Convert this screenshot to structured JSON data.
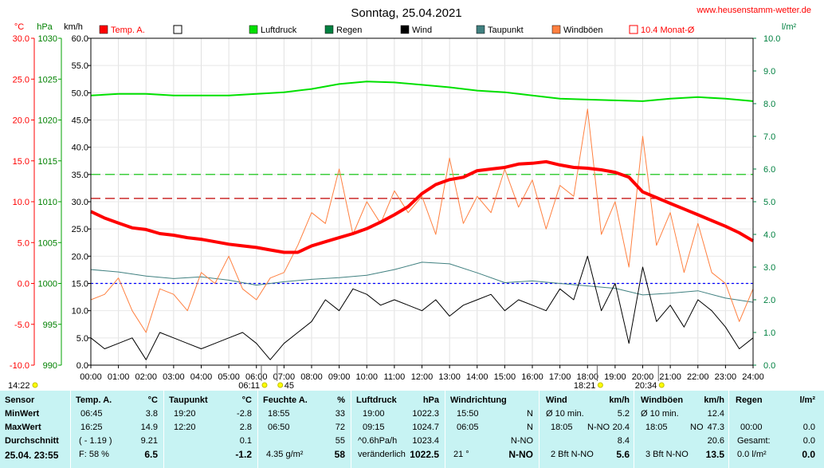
{
  "website": "www.heusenstamm-wetter.de",
  "chart_data": {
    "type": "line",
    "title": "Sonntag, 25.04.2021",
    "axes": {
      "temp": {
        "unit": "°C",
        "range": [
          -10,
          30
        ],
        "ticks": [
          "30.0",
          "25.0",
          "20.0",
          "15.0",
          "10.0",
          "5.0",
          "0.0",
          "-5.0",
          "-10.0"
        ]
      },
      "pressure": {
        "unit": "hPa",
        "range": [
          990,
          1030
        ],
        "ticks": [
          "1030",
          "1025",
          "1020",
          "1015",
          "1010",
          "1005",
          "1000",
          "995",
          "990"
        ]
      },
      "wind": {
        "unit": "km/h",
        "range": [
          0,
          60
        ],
        "ticks": [
          "60.0",
          "55.0",
          "50.0",
          "45.0",
          "40.0",
          "35.0",
          "30.0",
          "25.0",
          "20.0",
          "15.0",
          "10.0",
          "5.0",
          "0.0"
        ]
      },
      "rain": {
        "unit": "l/m²",
        "range": [
          0,
          10
        ],
        "ticks": [
          "10.0",
          "9.0",
          "8.0",
          "7.0",
          "6.0",
          "5.0",
          "4.0",
          "3.0",
          "2.0",
          "1.0",
          "0.0"
        ]
      }
    },
    "x_ticks": [
      "00:00",
      "01:00",
      "02:00",
      "03:00",
      "04:00",
      "05:00",
      "06:00",
      "07:00",
      "08:00",
      "09:00",
      "10:00",
      "11:00",
      "12:00",
      "13:00",
      "14:00",
      "15:00",
      "16:00",
      "17:00",
      "18:00",
      "19:00",
      "20:00",
      "21:00",
      "22:00",
      "23:00",
      "24:00"
    ],
    "legend": [
      {
        "name": "Temp. A.",
        "color": "#ff0000",
        "style": "filled"
      },
      {
        "name": "",
        "color": "#ffffff",
        "style": "outline"
      },
      {
        "name": "Luftdruck",
        "color": "#00e000",
        "style": "filled"
      },
      {
        "name": "Regen",
        "color": "#008040",
        "style": "filled"
      },
      {
        "name": "Wind",
        "color": "#000000",
        "style": "filled"
      },
      {
        "name": "Taupunkt",
        "color": "#408080",
        "style": "filled"
      },
      {
        "name": "Windböen",
        "color": "#ff8040",
        "style": "filled"
      },
      {
        "name": "10.4 Monat-Ø",
        "color": "#ff0000",
        "style": "outline"
      }
    ],
    "reference_lines": [
      {
        "axis": "temp",
        "value": 10.4,
        "color": "#c00000",
        "dash": "long"
      },
      {
        "axis": "temp",
        "value": 0.0,
        "color": "#0000ff",
        "dash": "short"
      },
      {
        "axis": "wind",
        "value": 35.0,
        "color": "#00c000",
        "dash": "long"
      }
    ],
    "series": [
      {
        "name": "Temp. A.",
        "axis": "temp",
        "color": "#ff0000",
        "width": 4,
        "x": [
          0,
          0.5,
          1,
          1.5,
          2,
          2.5,
          3,
          3.5,
          4,
          4.5,
          5,
          5.5,
          6,
          6.5,
          7,
          7.5,
          8,
          8.5,
          9,
          9.5,
          10,
          10.5,
          11,
          11.5,
          12,
          12.5,
          13,
          13.5,
          14,
          14.5,
          15,
          15.5,
          16,
          16.5,
          17,
          17.5,
          18,
          18.5,
          19,
          19.5,
          20,
          20.5,
          21,
          21.5,
          22,
          22.5,
          23,
          23.5,
          24
        ],
        "y": [
          8.8,
          8.0,
          7.4,
          6.8,
          6.6,
          6.1,
          5.9,
          5.6,
          5.4,
          5.1,
          4.8,
          4.6,
          4.4,
          4.1,
          3.8,
          3.8,
          4.6,
          5.1,
          5.6,
          6.1,
          6.7,
          7.5,
          8.4,
          9.4,
          11.0,
          12.1,
          12.7,
          13.0,
          13.8,
          14.0,
          14.2,
          14.6,
          14.7,
          14.9,
          14.5,
          14.2,
          14.1,
          13.9,
          13.6,
          13.0,
          11.2,
          10.5,
          9.8,
          9.1,
          8.4,
          7.7,
          7.0,
          6.2,
          5.2
        ]
      },
      {
        "name": "Luftdruck",
        "axis": "pressure",
        "color": "#00e000",
        "width": 2,
        "x": [
          0,
          1,
          2,
          3,
          4,
          5,
          6,
          7,
          8,
          9,
          10,
          11,
          12,
          13,
          14,
          15,
          16,
          17,
          18,
          19,
          20,
          21,
          22,
          23,
          24
        ],
        "y": [
          1023.0,
          1023.2,
          1023.2,
          1023.0,
          1023.0,
          1023.0,
          1023.2,
          1023.4,
          1023.8,
          1024.4,
          1024.7,
          1024.6,
          1024.3,
          1024.0,
          1023.6,
          1023.4,
          1023.0,
          1022.6,
          1022.5,
          1022.4,
          1022.3,
          1022.6,
          1022.8,
          1022.6,
          1022.3
        ]
      },
      {
        "name": "Taupunkt",
        "axis": "temp",
        "color": "#408080",
        "width": 1,
        "x": [
          0,
          1,
          2,
          3,
          4,
          5,
          6,
          7,
          8,
          9,
          10,
          11,
          12,
          13,
          14,
          15,
          16,
          17,
          18,
          19,
          20,
          21,
          22,
          23,
          24
        ],
        "y": [
          1.7,
          1.4,
          0.9,
          0.6,
          0.8,
          0.4,
          -0.2,
          0.2,
          0.5,
          0.7,
          1.0,
          1.7,
          2.6,
          2.4,
          1.3,
          0.1,
          0.3,
          0.0,
          -0.3,
          -0.6,
          -1.4,
          -1.2,
          -0.9,
          -1.8,
          -2.3
        ]
      },
      {
        "name": "Windböen",
        "axis": "wind",
        "color": "#ff8040",
        "width": 1,
        "x": [
          0,
          0.5,
          1,
          1.5,
          2,
          2.5,
          3,
          3.5,
          4,
          4.5,
          5,
          5.5,
          6,
          6.5,
          7,
          7.5,
          8,
          8.5,
          9,
          9.5,
          10,
          10.5,
          11,
          11.5,
          12,
          12.5,
          13,
          13.5,
          14,
          14.5,
          15,
          15.5,
          16,
          16.5,
          17,
          17.5,
          18,
          18.5,
          19,
          19.5,
          20,
          20.5,
          21,
          21.5,
          22,
          22.5,
          23,
          23.5,
          24
        ],
        "y": [
          12,
          13,
          16,
          10,
          6,
          14,
          13,
          10,
          17,
          15,
          20,
          14,
          12,
          16,
          17,
          22,
          28,
          26,
          36,
          24,
          30,
          26,
          32,
          28,
          31,
          24,
          38,
          26,
          31,
          28,
          36,
          29,
          34,
          25,
          33,
          31,
          47,
          24,
          30,
          18,
          42,
          22,
          28,
          17,
          26,
          17,
          15,
          8,
          14
        ]
      },
      {
        "name": "Wind",
        "axis": "wind",
        "color": "#000000",
        "width": 1,
        "x": [
          0,
          0.5,
          1,
          1.5,
          2,
          2.5,
          3,
          3.5,
          4,
          4.5,
          5,
          5.5,
          6,
          6.5,
          7,
          7.5,
          8,
          8.5,
          9,
          9.5,
          10,
          10.5,
          11,
          11.5,
          12,
          12.5,
          13,
          13.5,
          14,
          14.5,
          15,
          15.5,
          16,
          16.5,
          17,
          17.5,
          18,
          18.5,
          19,
          19.5,
          20,
          20.5,
          21,
          21.5,
          22,
          22.5,
          23,
          23.5,
          24
        ],
        "y": [
          5,
          3,
          4,
          5,
          1,
          6,
          5,
          4,
          3,
          4,
          5,
          6,
          4,
          1,
          4,
          6,
          8,
          12,
          10,
          14,
          13,
          11,
          12,
          11,
          10,
          12,
          9,
          11,
          12,
          13,
          10,
          12,
          11,
          10,
          14,
          12,
          20,
          10,
          15,
          4,
          18,
          8,
          11,
          7,
          12,
          10,
          7,
          3,
          5
        ]
      }
    ]
  },
  "below_axis": {
    "left_time": "14:22",
    "markers": [
      {
        "label": "06:11",
        "x": 6.18
      },
      {
        "label": "45",
        "x": 6.75
      },
      {
        "label": "18:21",
        "x": 18.35
      },
      {
        "label": "20:34",
        "x": 20.57
      }
    ]
  },
  "panel": {
    "col1": {
      "hdr": "Sensor",
      "r1": "MinWert",
      "r2": "MaxWert",
      "r3": "Durchschnitt",
      "r4": "25.04. 23:55"
    },
    "col2": {
      "hdr": "Temp. A.",
      "unit": "°C",
      "r1a": "06:45",
      "r1b": "3.8",
      "r2a": "16:25",
      "r2b": "14.9",
      "r3a": "( - 1.19 )",
      "r3b": "9.21",
      "r4a": "F: 58 %",
      "r4b": "6.5"
    },
    "col3": {
      "hdr": "Taupunkt",
      "unit": "°C",
      "r1a": "19:20",
      "r1b": "-2.8",
      "r2a": "12:20",
      "r2b": "2.8",
      "r3b": "0.1",
      "r4b": "-1.2"
    },
    "col4": {
      "hdr": "Feuchte A.",
      "unit": "%",
      "r1a": "18:55",
      "r1b": "33",
      "r2a": "06:50",
      "r2b": "72",
      "r3b": "55",
      "r4a": "4.35 g/m²",
      "r4b": "58"
    },
    "col5": {
      "hdr": "Luftdruck",
      "unit": "hPa",
      "r1a": "19:00",
      "r1b": "1022.3",
      "r2a": "09:15",
      "r2b": "1024.7",
      "r3a": "^0.6hPa/h",
      "r3b": "1023.4",
      "r4a": "veränderlich",
      "r4b": "1022.5"
    },
    "col6": {
      "hdr": "Windrichtung",
      "r1a": "15:50",
      "r1b": "N",
      "r2a": "06:05",
      "r2b": "N",
      "r3b": "N-NO",
      "r4a": "21 °",
      "r4b": "N-NO"
    },
    "col7": {
      "hdr": "Wind",
      "unit": "km/h",
      "r1a": "Ø 10 min.",
      "r1b": "5.2",
      "r2a": "18:05",
      "r2m": "N-NO",
      "r2b": "20.4",
      "r3b": "8.4",
      "r4a": "2 Bft N-NO",
      "r4b": "5.6"
    },
    "col8": {
      "hdr": "Windböen",
      "unit": "km/h",
      "r1a": "Ø 10 min.",
      "r1b": "12.4",
      "r2a": "18:05",
      "r2m": "NO",
      "r2b": "47.3",
      "r3b": "20.6",
      "r4a": "3 Bft N-NO",
      "r4b": "13.5"
    },
    "col9": {
      "hdr": "Regen",
      "unit": "l/m²",
      "r2a": "00:00",
      "r2b": "0.0",
      "r3a": "Gesamt:",
      "r3b": "0.0",
      "r4a": "0.0 l/m²",
      "r4b": "0.0"
    }
  }
}
